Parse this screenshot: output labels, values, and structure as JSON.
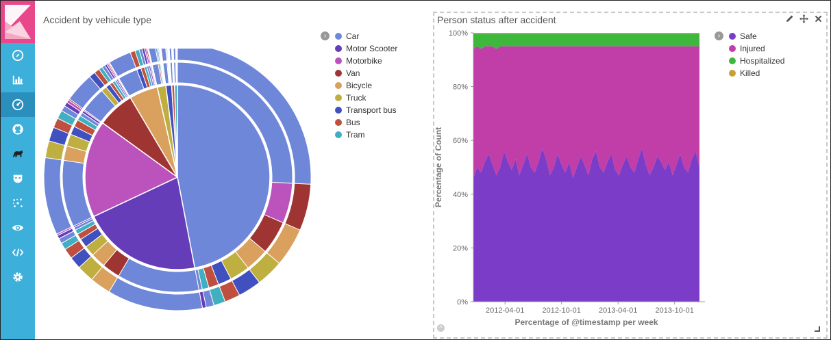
{
  "sidebar": {
    "items": [
      {
        "icon": "compass-icon"
      },
      {
        "icon": "bar-chart-icon"
      },
      {
        "icon": "dashboard-icon"
      },
      {
        "icon": "github-icon"
      },
      {
        "icon": "timelion-icon"
      },
      {
        "icon": "mask-icon"
      },
      {
        "icon": "graph-icon"
      },
      {
        "icon": "eye-icon"
      },
      {
        "icon": "code-icon"
      },
      {
        "icon": "gear-icon"
      }
    ],
    "active_index": 2
  },
  "panel1": {
    "title": "Accident by vehicule type",
    "legend": [
      {
        "label": "Car",
        "color": "#6f87d8"
      },
      {
        "label": "Motor Scooter",
        "color": "#663db8"
      },
      {
        "label": "Motorbike",
        "color": "#bc52bc"
      },
      {
        "label": "Van",
        "color": "#9e3533"
      },
      {
        "label": "Bicycle",
        "color": "#daa05d"
      },
      {
        "label": "Truck",
        "color": "#bfaf40"
      },
      {
        "label": "Transport bus",
        "color": "#4050bf"
      },
      {
        "label": "Bus",
        "color": "#bf5040"
      },
      {
        "label": "Tram",
        "color": "#40afbf"
      }
    ]
  },
  "panel2": {
    "title": "Person status after accident",
    "icons": [
      "pencil-icon",
      "move-icon",
      "close-icon"
    ],
    "legend": [
      {
        "label": "Safe",
        "color": "#7b3dc8"
      },
      {
        "label": "Injured",
        "color": "#c13da8"
      },
      {
        "label": "Hospitalized",
        "color": "#3db83d"
      },
      {
        "label": "Killed",
        "color": "#c8a030"
      }
    ]
  },
  "chart_data": [
    {
      "type": "pie",
      "title": "Accident by vehicule type",
      "categories": [
        "Car",
        "Motor Scooter",
        "Motorbike",
        "Van",
        "Bicycle",
        "Truck",
        "Transport bus",
        "Bus",
        "Tram"
      ],
      "values": [
        47,
        21,
        17,
        6.5,
        5,
        1.5,
        1,
        0.5,
        0.5
      ],
      "colors": [
        "#6f87d8",
        "#663db8",
        "#bc52bc",
        "#9e3533",
        "#daa05d",
        "#bfaf40",
        "#4050bf",
        "#bf5040",
        "#40afbf"
      ],
      "legend_position": "top-right"
    },
    {
      "type": "area",
      "title": "Person status after accident",
      "xlabel": "Percentage of @timestamp per week",
      "ylabel": "Percentage of Count",
      "x_ticks": [
        "2012-04-01",
        "2012-10-01",
        "2013-04-01",
        "2013-10-01"
      ],
      "y_ticks": [
        "0%",
        "20%",
        "40%",
        "60%",
        "80%",
        "100%"
      ],
      "ylim": [
        0,
        100
      ],
      "stacked": true,
      "legend_position": "top-right",
      "series": [
        {
          "name": "Safe",
          "color": "#7b3dc8",
          "values": [
            46,
            50,
            48,
            52,
            55,
            51,
            47,
            50,
            56,
            52,
            49,
            53,
            47,
            51,
            55,
            50,
            48,
            52,
            57,
            53,
            47,
            50,
            55,
            51,
            48,
            52,
            46,
            50,
            54,
            51,
            47,
            53,
            56,
            50,
            48,
            52,
            55,
            49,
            47,
            51,
            54,
            50,
            48,
            53,
            57,
            51,
            47,
            50,
            54,
            52,
            49,
            52,
            47,
            51,
            55,
            50,
            48,
            53,
            56,
            50
          ]
        },
        {
          "name": "Injured",
          "color": "#c13da8",
          "values": [
            48,
            45,
            46,
            43,
            40,
            44,
            47,
            45,
            39,
            43,
            46,
            42,
            48,
            44,
            40,
            45,
            47,
            43,
            38,
            42,
            48,
            45,
            40,
            44,
            47,
            43,
            49,
            45,
            41,
            44,
            48,
            42,
            39,
            45,
            47,
            43,
            40,
            46,
            48,
            44,
            41,
            45,
            47,
            42,
            38,
            44,
            48,
            45,
            41,
            43,
            46,
            43,
            48,
            44,
            40,
            45,
            47,
            42,
            39,
            45
          ]
        },
        {
          "name": "Hospitalized",
          "color": "#3db83d",
          "values": [
            5.5,
            4.5,
            5.5,
            4.5,
            4.5,
            4.5,
            5.5,
            4.5,
            4.5,
            4.5,
            4.5,
            4.5,
            4.5,
            4.5,
            4.5,
            4.5,
            4.5,
            4.5,
            4.5,
            4.5,
            4.5,
            4.5,
            4.5,
            4.5,
            4.5,
            4.5,
            4.5,
            4.5,
            4.5,
            4.5,
            4.5,
            4.5,
            4.5,
            4.5,
            4.5,
            4.5,
            4.5,
            4.5,
            4.5,
            4.5,
            4.5,
            4.5,
            4.5,
            4.5,
            4.5,
            4.5,
            4.5,
            4.5,
            4.5,
            4.5,
            4.5,
            4.5,
            4.5,
            4.5,
            4.5,
            4.5,
            4.5,
            4.5,
            4.5,
            4.5
          ]
        },
        {
          "name": "Killed",
          "color": "#c8a030",
          "values": [
            0.5,
            0.5,
            0.5,
            0.5,
            0.5,
            0.5,
            0.5,
            0.5,
            0.5,
            0.5,
            0.5,
            0.5,
            0.5,
            0.5,
            0.5,
            0.5,
            0.5,
            0.5,
            0.5,
            0.5,
            0.5,
            0.5,
            0.5,
            0.5,
            0.5,
            0.5,
            0.5,
            0.5,
            0.5,
            0.5,
            0.5,
            0.5,
            0.5,
            0.5,
            0.5,
            0.5,
            0.5,
            0.5,
            0.5,
            0.5,
            0.5,
            0.5,
            0.5,
            0.5,
            0.5,
            0.5,
            0.5,
            0.5,
            0.5,
            0.5,
            0.5,
            0.5,
            0.5,
            0.5,
            0.5,
            0.5,
            0.5,
            0.5,
            0.5,
            0.5
          ]
        }
      ]
    }
  ]
}
